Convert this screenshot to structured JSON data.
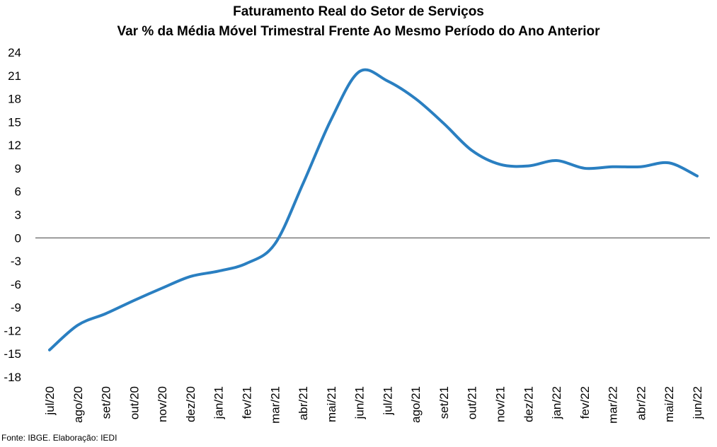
{
  "chart_data": {
    "type": "line",
    "title": "Faturamento Real do Setor de Serviços",
    "subtitle": "Var % da Média Móvel Trimestral Frente Ao Mesmo Período do Ano Anterior",
    "categories": [
      "jul/20",
      "ago/20",
      "set/20",
      "out/20",
      "nov/20",
      "dez/20",
      "jan/21",
      "fev/21",
      "mar/21",
      "abr/21",
      "mai/21",
      "jun/21",
      "jul/21",
      "ago/21",
      "set/21",
      "out/21",
      "nov/21",
      "dez/21",
      "jan/22",
      "fev/22",
      "mar/22",
      "abr/22",
      "mai/22",
      "jun/22"
    ],
    "series": [
      {
        "name": "",
        "color": "#2a7fc1",
        "values": [
          -14.5,
          -11.3,
          -9.8,
          -8.1,
          -6.5,
          -5.0,
          -4.3,
          -3.3,
          -0.8,
          7.0,
          15.3,
          21.5,
          20.3,
          18.0,
          14.8,
          11.3,
          9.5,
          9.3,
          10.0,
          9.0,
          9.2,
          9.2,
          9.7,
          8.0
        ]
      }
    ],
    "yticks": [
      24,
      21,
      18,
      15,
      12,
      9,
      6,
      3,
      0,
      -3,
      -6,
      -9,
      -12,
      -15,
      -18
    ],
    "ylim": [
      -18,
      24
    ],
    "xlabel": "",
    "ylabel": "",
    "grid": false,
    "legend": "none"
  },
  "source": "Fonte: IBGE. Elaboração: IEDI"
}
